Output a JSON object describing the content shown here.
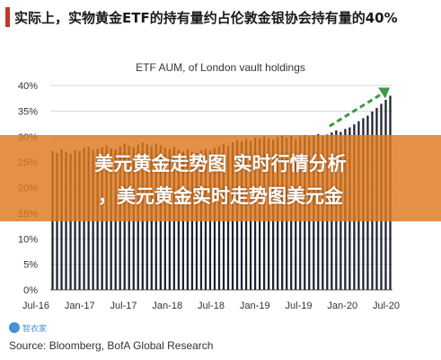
{
  "header": {
    "title": "实际上，实物黄金ETF的持有量约占伦敦金银协会持有量的40%",
    "accent_color": "#c0392b"
  },
  "overlay": {
    "line1": "美元黄金走势图 实时行情分析",
    "line2": "，美元黄金实时走势图美元金",
    "color": "#de781e"
  },
  "logo": {
    "text": "智衣家",
    "icon": "logo-icon"
  },
  "source": "Source: Bloomberg, BofA Global Research",
  "chart_data": {
    "type": "bar",
    "title": "ETF AUM, of London vault holdings",
    "xlabel": "",
    "ylabel": "",
    "ylim": [
      0,
      40
    ],
    "yticks": [
      "0%",
      "5%",
      "10%",
      "15%",
      "20%",
      "25%",
      "30%",
      "35%",
      "40%"
    ],
    "xticks": [
      "Jul-16",
      "Jan-17",
      "Jul-17",
      "Jan-18",
      "Jul-18",
      "Jan-19",
      "Jul-19",
      "Jan-20",
      "Jul-20"
    ],
    "bar_color": "#1c2230",
    "trend_arrow_color": "#3a9a4a",
    "grid": true,
    "values": [
      27.2,
      26.8,
      27.5,
      27.0,
      26.6,
      27.3,
      27.1,
      27.8,
      28.0,
      27.4,
      27.6,
      27.9,
      28.3,
      27.7,
      27.5,
      28.1,
      28.6,
      28.2,
      27.9,
      28.4,
      28.8,
      28.5,
      28.1,
      28.6,
      28.3,
      27.8,
      27.6,
      28.0,
      27.4,
      27.1,
      27.5,
      27.0,
      26.8,
      27.3,
      27.6,
      27.2,
      27.8,
      28.1,
      28.5,
      28.2,
      28.9,
      29.3,
      29.0,
      29.5,
      29.2,
      29.8,
      29.6,
      30.0,
      29.7,
      29.4,
      29.9,
      30.2,
      29.8,
      30.1,
      29.6,
      30.0,
      30.3,
      29.9,
      30.2,
      30.5,
      30.1,
      30.4,
      30.8,
      31.2,
      30.9,
      31.5,
      31.8,
      32.4,
      33.0,
      33.6,
      34.1,
      34.9,
      35.6,
      36.4,
      37.2,
      38.0
    ]
  }
}
